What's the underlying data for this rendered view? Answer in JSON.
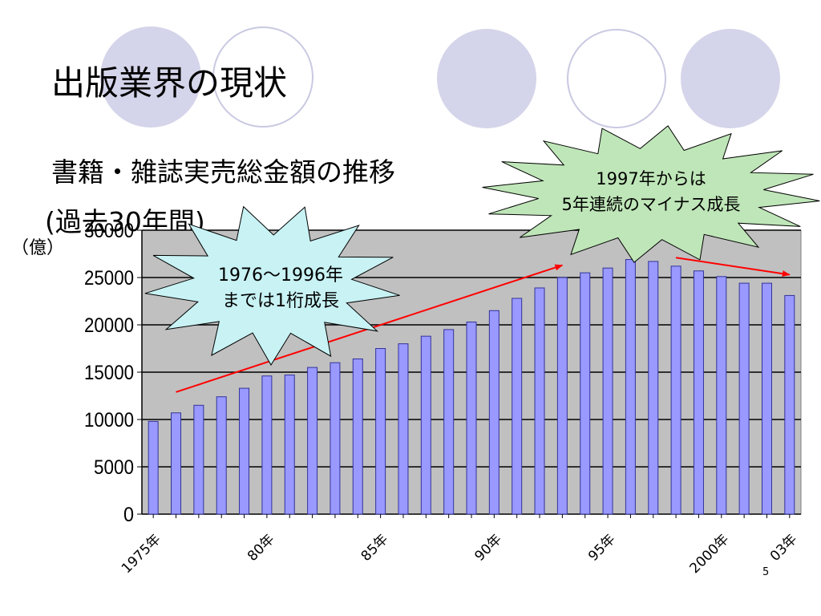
{
  "slide": {
    "title": "出版業界の現状",
    "subtitle_line1": "書籍・雑誌実売総金額の推移",
    "subtitle_line2": "(過去30年間)",
    "page_number": "5"
  },
  "callouts": {
    "left": {
      "line1": "1976～1996年",
      "line2": "までは1桁成長"
    },
    "right": {
      "line1": "1997年からは",
      "line2": "5年連続のマイナス成長"
    }
  },
  "colors": {
    "bar_fill": "#9999ff",
    "bar_stroke": "#33339a",
    "plot_bg": "#c0c0c0",
    "trend_arrow": "#ff0000",
    "callout_left_fill": "#c8f2f4",
    "callout_right_fill": "#bfe6b8",
    "deco_circle": "#d4d4ea"
  },
  "chart_data": {
    "type": "bar",
    "ylabel": "（億）",
    "ylim": [
      0,
      30000
    ],
    "yticks": [
      0,
      5000,
      10000,
      15000,
      20000,
      25000,
      30000
    ],
    "grid": true,
    "legend": "none",
    "x": [
      1975,
      1976,
      1977,
      1978,
      1979,
      1980,
      1981,
      1982,
      1983,
      1984,
      1985,
      1986,
      1987,
      1988,
      1989,
      1990,
      1991,
      1992,
      1993,
      1994,
      1995,
      1996,
      1997,
      1998,
      1999,
      2000,
      2001,
      2002,
      2003
    ],
    "xtick_labels": [
      {
        "x": 1975,
        "label": "1975年"
      },
      {
        "x": 1980,
        "label": "80年"
      },
      {
        "x": 1985,
        "label": "85年"
      },
      {
        "x": 1990,
        "label": "90年"
      },
      {
        "x": 1995,
        "label": "95年"
      },
      {
        "x": 2000,
        "label": "2000年"
      },
      {
        "x": 2003,
        "label": "03年"
      }
    ],
    "series": [
      {
        "values": [
          9800,
          10700,
          11500,
          12400,
          13300,
          14600,
          14700,
          15500,
          16000,
          16400,
          17500,
          18000,
          18800,
          19500,
          20300,
          21500,
          22800,
          23900,
          25000,
          25500,
          26000,
          26900,
          26700,
          26200,
          25700,
          25100,
          24400,
          24400,
          23100
        ]
      }
    ],
    "trend_arrows": [
      {
        "from_x": 1976,
        "from_y": 12900,
        "to_x": 1993,
        "to_y": 26300
      },
      {
        "from_x": 1998,
        "from_y": 27100,
        "to_x": 2003,
        "to_y": 25300
      }
    ]
  }
}
